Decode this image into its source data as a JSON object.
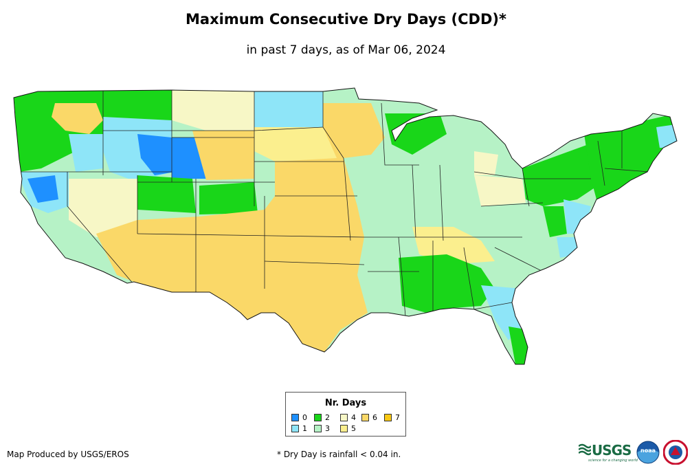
{
  "title": "Maximum Consecutive Dry Days (CDD)*",
  "subtitle": "in past 7 days, as of Mar 06, 2024",
  "legend": {
    "title": "Nr. Days",
    "items": [
      {
        "label": "0",
        "color": "#1e90ff"
      },
      {
        "label": "1",
        "color": "#8ee5f8"
      },
      {
        "label": "2",
        "color": "#19d619"
      },
      {
        "label": "3",
        "color": "#b6f2c6"
      },
      {
        "label": "4",
        "color": "#f7f7c6"
      },
      {
        "label": "5",
        "color": "#fbef8e"
      },
      {
        "label": "6",
        "color": "#fad868"
      },
      {
        "label": "7",
        "color": "#f9c814"
      }
    ]
  },
  "credit": "Map Produced by USGS/EROS",
  "note": "* Dry Day is rainfall < 0.04 in.",
  "logos": {
    "usgs": "USGS",
    "usgs_tagline": "science for a changing world",
    "noaa": "noaa"
  }
}
